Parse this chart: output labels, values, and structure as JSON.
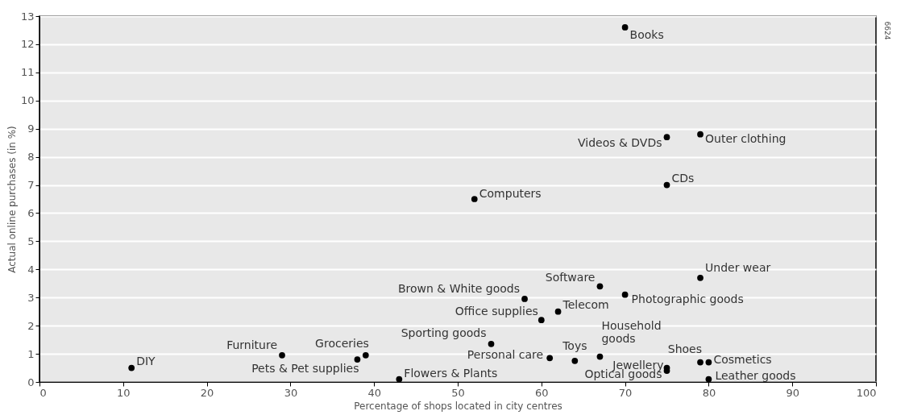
{
  "chart_data": {
    "type": "scatter",
    "xlabel": "Percentage of shops located in city centres",
    "ylabel": "Actual online purchases (in %)",
    "xlim": [
      0,
      100
    ],
    "ylim": [
      0,
      13
    ],
    "xticks": [
      0,
      10,
      20,
      30,
      40,
      50,
      60,
      70,
      80,
      90,
      100
    ],
    "yticks": [
      0,
      1,
      2,
      3,
      4,
      5,
      6,
      7,
      8,
      9,
      10,
      11,
      12,
      13
    ],
    "grid": "y",
    "marker": "circle",
    "series": [
      {
        "color": "#000000",
        "x": [
          70,
          75,
          79,
          75,
          52,
          79,
          67,
          70,
          58,
          62,
          60,
          54,
          61,
          64,
          67,
          75,
          79,
          80,
          75,
          80,
          11,
          29,
          38,
          39,
          43
        ],
        "values": [
          12.6,
          8.7,
          8.8,
          7.0,
          6.5,
          3.7,
          3.4,
          3.1,
          2.95,
          2.5,
          2.2,
          1.35,
          0.85,
          0.75,
          0.9,
          0.5,
          0.7,
          0.7,
          0.4,
          0.1,
          0.5,
          0.95,
          0.8,
          0.95,
          0.1
        ]
      }
    ],
    "annotations": [
      {
        "text": "Books",
        "x": 70,
        "y": 12.6
      },
      {
        "text": "Videos & DVDs",
        "x": 75,
        "y": 8.7
      },
      {
        "text": "Outer clothing",
        "x": 79,
        "y": 8.8
      },
      {
        "text": "CDs",
        "x": 75,
        "y": 7.0
      },
      {
        "text": "Computers",
        "x": 52,
        "y": 6.5
      },
      {
        "text": "Under wear",
        "x": 79,
        "y": 3.7
      },
      {
        "text": "Software",
        "x": 67,
        "y": 3.4
      },
      {
        "text": "Photographic goods",
        "x": 70,
        "y": 3.1
      },
      {
        "text": "Brown & White goods",
        "x": 58,
        "y": 2.95
      },
      {
        "text": "Telecom",
        "x": 62,
        "y": 2.5
      },
      {
        "text": "Office supplies",
        "x": 60,
        "y": 2.2
      },
      {
        "text": "Sporting goods",
        "x": 54,
        "y": 1.35
      },
      {
        "text": "Personal care",
        "x": 61,
        "y": 0.85
      },
      {
        "text": "Toys",
        "x": 64,
        "y": 0.75
      },
      {
        "text": "Household goods",
        "x": 67,
        "y": 0.9
      },
      {
        "text": "Jewellery",
        "x": 75,
        "y": 0.5
      },
      {
        "text": "Shoes",
        "x": 79,
        "y": 0.7
      },
      {
        "text": "Cosmetics",
        "x": 80,
        "y": 0.7
      },
      {
        "text": "Optical goods",
        "x": 75,
        "y": 0.4
      },
      {
        "text": "Leather goods",
        "x": 80,
        "y": 0.1
      },
      {
        "text": "DIY",
        "x": 11,
        "y": 0.5
      },
      {
        "text": "Furniture",
        "x": 29,
        "y": 0.95
      },
      {
        "text": "Pets & Pet supplies",
        "x": 38,
        "y": 0.8
      },
      {
        "text": "Groceries",
        "x": 39,
        "y": 0.95
      },
      {
        "text": "Flowers & Plants",
        "x": 43,
        "y": 0.1
      },
      "6624"
    ]
  }
}
